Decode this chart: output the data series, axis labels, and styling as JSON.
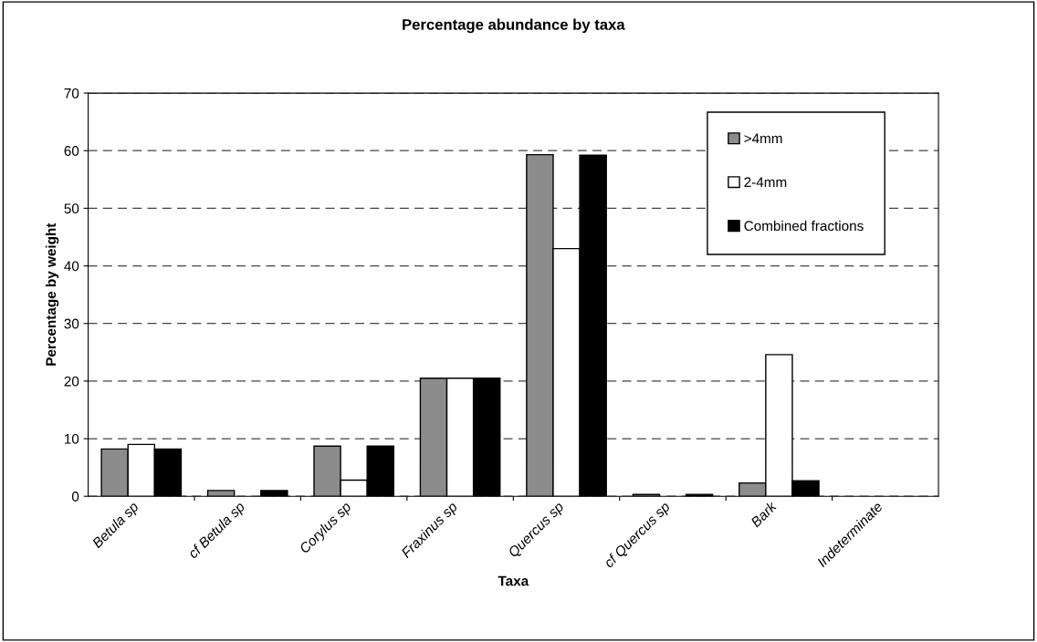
{
  "chart_data": {
    "type": "bar",
    "title": "Percentage abundance by taxa",
    "xlabel": "Taxa",
    "ylabel": "Percentage by weight",
    "categories": [
      "Betula sp",
      "cf Betula sp",
      "Corylus sp",
      "Fraxinus sp",
      "Quercus sp",
      "cf Quercus sp",
      "Bark",
      "Indeterminate"
    ],
    "series": [
      {
        "name": ">4mm",
        "color": "#8c8c8c",
        "values": [
          8.2,
          1.0,
          8.7,
          20.5,
          59.3,
          0.3,
          2.3,
          null
        ]
      },
      {
        "name": "2-4mm",
        "color": "#ffffff",
        "values": [
          9.0,
          null,
          2.8,
          20.5,
          43.0,
          null,
          24.6,
          null
        ]
      },
      {
        "name": "Combined fractions",
        "color": "#000000",
        "values": [
          8.2,
          1.0,
          8.7,
          20.5,
          59.2,
          0.3,
          2.7,
          null
        ]
      }
    ],
    "ylim": [
      0,
      70
    ],
    "yticks": [
      0,
      10,
      20,
      30,
      40,
      50,
      60,
      70
    ],
    "grid": "y",
    "legend": "top right"
  }
}
